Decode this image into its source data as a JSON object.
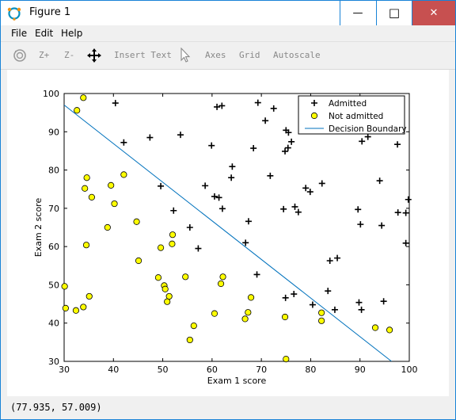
{
  "window": {
    "title": "Figure 1",
    "minimize_glyph": "—",
    "maximize_glyph": "□",
    "close_glyph": "✕"
  },
  "menu": {
    "file": "File",
    "edit": "Edit",
    "help": "Help"
  },
  "toolbar": {
    "rotate_icon": "rotate-icon",
    "zoom_in": "Z+",
    "zoom_out": "Z-",
    "pan_icon": "pan-move-icon",
    "insert_text": "Insert Text",
    "select_icon": "pointer-icon",
    "axes": "Axes",
    "grid": "Grid",
    "autoscale": "Autoscale"
  },
  "status": {
    "coords": "(77.935, 57.009)"
  },
  "chart_data": {
    "type": "scatter",
    "xlabel": "Exam 1 score",
    "ylabel": "Exam 2 score",
    "xlim": [
      30,
      100
    ],
    "ylim": [
      30,
      100
    ],
    "xticks": [
      30,
      40,
      50,
      60,
      70,
      80,
      90,
      100
    ],
    "yticks": [
      30,
      40,
      50,
      60,
      70,
      80,
      90,
      100
    ],
    "grid": false,
    "legend_position": "top-right",
    "series": [
      {
        "name": "Admitted",
        "marker": "plus",
        "color": "#000000",
        "points": [
          [
            40.4,
            97.5
          ],
          [
            42.1,
            87.2
          ],
          [
            47.4,
            88.5
          ],
          [
            53.6,
            89.2
          ],
          [
            61.0,
            96.5
          ],
          [
            62.0,
            96.8
          ],
          [
            69.3,
            97.6
          ],
          [
            72.5,
            96.1
          ],
          [
            70.8,
            92.9
          ],
          [
            59.9,
            86.4
          ],
          [
            68.4,
            85.7
          ],
          [
            74.8,
            84.9
          ],
          [
            75.4,
            85.8
          ],
          [
            76.1,
            87.4
          ],
          [
            75.5,
            89.8
          ],
          [
            75.0,
            90.4
          ],
          [
            64.1,
            80.9
          ],
          [
            63.9,
            78.0
          ],
          [
            71.8,
            78.5
          ],
          [
            49.6,
            75.8
          ],
          [
            58.6,
            75.9
          ],
          [
            60.5,
            73.1
          ],
          [
            61.4,
            72.8
          ],
          [
            62.1,
            69.9
          ],
          [
            52.2,
            69.4
          ],
          [
            55.5,
            65.0
          ],
          [
            57.2,
            59.5
          ],
          [
            66.8,
            61.0
          ],
          [
            67.4,
            66.6
          ],
          [
            74.5,
            69.8
          ],
          [
            76.8,
            70.4
          ],
          [
            77.5,
            69.0
          ],
          [
            79.0,
            75.3
          ],
          [
            79.9,
            74.3
          ],
          [
            82.3,
            76.5
          ],
          [
            83.9,
            56.3
          ],
          [
            85.4,
            57.0
          ],
          [
            89.6,
            69.7
          ],
          [
            90.1,
            65.8
          ],
          [
            90.4,
            87.5
          ],
          [
            91.6,
            88.7
          ],
          [
            94.0,
            77.2
          ],
          [
            94.4,
            65.5
          ],
          [
            97.6,
            86.7
          ],
          [
            97.7,
            68.9
          ],
          [
            99.3,
            68.8
          ],
          [
            99.8,
            72.3
          ],
          [
            99.3,
            60.9
          ],
          [
            69.1,
            52.7
          ],
          [
            74.9,
            46.6
          ],
          [
            76.6,
            47.6
          ],
          [
            80.4,
            44.8
          ],
          [
            83.5,
            48.4
          ],
          [
            84.9,
            43.5
          ],
          [
            89.8,
            45.4
          ],
          [
            90.3,
            43.5
          ],
          [
            94.8,
            45.7
          ]
        ]
      },
      {
        "name": "Not admitted",
        "marker": "circle",
        "color": "#ffff00",
        "points": [
          [
            32.6,
            95.6
          ],
          [
            33.9,
            98.9
          ],
          [
            34.2,
            75.2
          ],
          [
            34.6,
            78.0
          ],
          [
            35.6,
            72.9
          ],
          [
            42.1,
            78.8
          ],
          [
            39.5,
            76.0
          ],
          [
            40.2,
            71.2
          ],
          [
            44.7,
            66.5
          ],
          [
            38.8,
            65.0
          ],
          [
            34.5,
            60.4
          ],
          [
            45.1,
            56.3
          ],
          [
            49.6,
            59.7
          ],
          [
            51.9,
            60.7
          ],
          [
            52.0,
            63.1
          ],
          [
            30.1,
            49.6
          ],
          [
            30.3,
            43.9
          ],
          [
            32.4,
            43.3
          ],
          [
            33.9,
            44.2
          ],
          [
            35.1,
            47.0
          ],
          [
            49.1,
            51.9
          ],
          [
            50.3,
            49.8
          ],
          [
            50.5,
            48.9
          ],
          [
            51.3,
            47.0
          ],
          [
            50.9,
            45.6
          ],
          [
            54.6,
            52.1
          ],
          [
            61.8,
            50.3
          ],
          [
            62.2,
            52.1
          ],
          [
            60.5,
            42.5
          ],
          [
            56.3,
            39.3
          ],
          [
            55.5,
            35.6
          ],
          [
            66.7,
            41.1
          ],
          [
            67.3,
            42.8
          ],
          [
            67.9,
            46.7
          ],
          [
            74.8,
            41.6
          ],
          [
            82.2,
            42.7
          ],
          [
            82.2,
            40.6
          ],
          [
            75.0,
            30.6
          ],
          [
            93.1,
            38.8
          ],
          [
            96.0,
            38.2
          ]
        ]
      },
      {
        "name": "Decision Boundary",
        "marker": "line",
        "color": "#0072bd",
        "x": [
          30.0,
          96.4
        ],
        "y": [
          97.0,
          30.0
        ]
      }
    ]
  }
}
